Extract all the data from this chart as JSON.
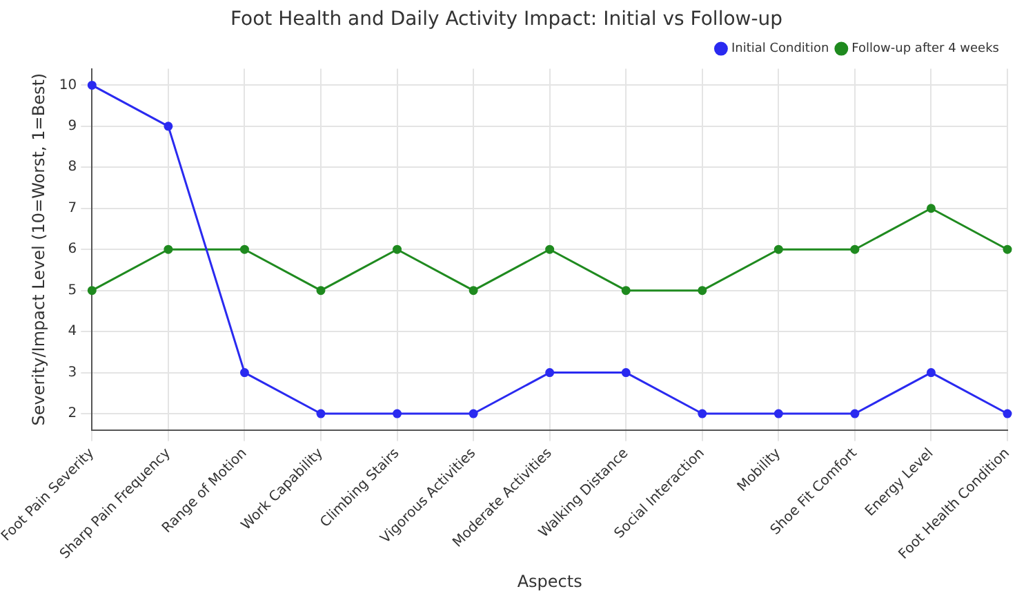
{
  "chart_data": {
    "type": "line",
    "title": "Foot Health and Daily Activity Impact: Initial vs Follow-up",
    "xlabel": "Aspects",
    "ylabel": "Severity/Impact Level (10=Worst, 1=Best)",
    "categories": [
      "Foot Pain Severity",
      "Sharp Pain Frequency",
      "Range of Motion",
      "Work Capability",
      "Climbing Stairs",
      "Vigorous Activities",
      "Moderate Activities",
      "Walking Distance",
      "Social Interaction",
      "Mobility",
      "Shoe Fit Comfort",
      "Energy Level",
      "Foot Health Condition"
    ],
    "series": [
      {
        "name": "Initial Condition",
        "color": "#2a2af0",
        "values": [
          10,
          9,
          3,
          2,
          2,
          2,
          3,
          3,
          2,
          2,
          2,
          3,
          2
        ]
      },
      {
        "name": "Follow-up after 4 weeks",
        "color": "#1f8a1f",
        "values": [
          5,
          6,
          6,
          5,
          6,
          5,
          6,
          5,
          5,
          6,
          6,
          7,
          6
        ]
      }
    ],
    "ylim": [
      1.6,
      10.4
    ],
    "yticks": [
      2,
      3,
      4,
      5,
      6,
      7,
      8,
      9,
      10
    ],
    "grid": true,
    "legend": "top right",
    "marker": "circle",
    "line_style": "solid"
  }
}
